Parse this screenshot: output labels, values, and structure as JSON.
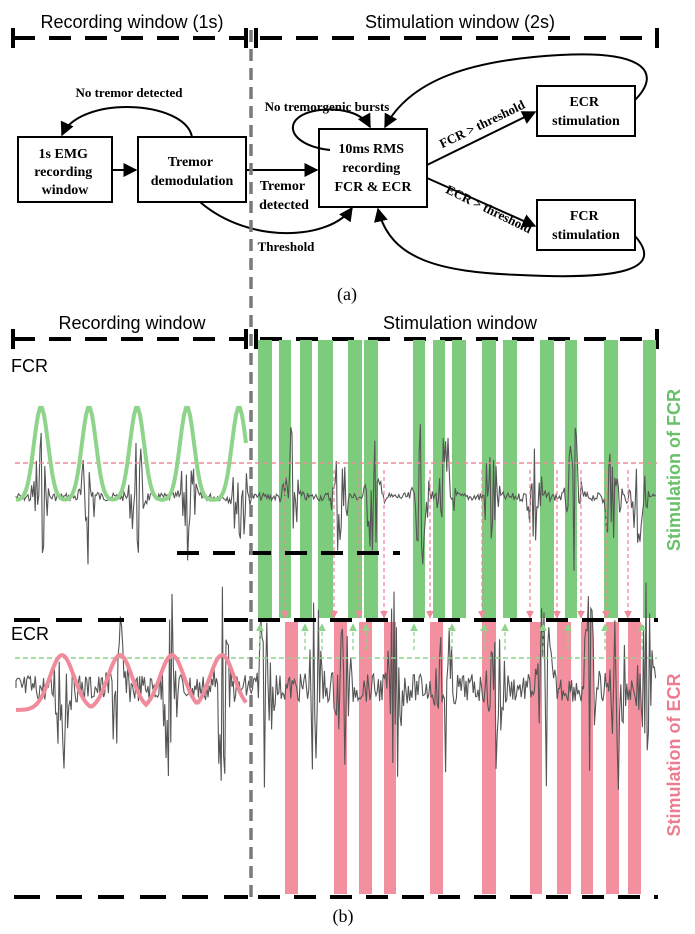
{
  "panel_a": {
    "header_left": "Recording window (1s)",
    "header_right": "Stimulation window (2s)",
    "boxes": {
      "emg": [
        "1s EMG",
        "recording",
        "window"
      ],
      "demod": [
        "Tremor",
        "demodulation"
      ],
      "rms": [
        "10ms RMS",
        "recording",
        "FCR & ECR"
      ],
      "ecr_stim": [
        "ECR",
        "stimulation"
      ],
      "fcr_stim": [
        "FCR",
        "stimulation"
      ]
    },
    "edge_labels": {
      "no_tremor": "No tremor detected",
      "no_bursts": "No tremorgenic bursts",
      "tremor_detected": [
        "Tremor",
        "detected"
      ],
      "threshold": "Threshold",
      "fcr_gt": "FCR > threshold",
      "ecr_gt": "ECR > threshold"
    },
    "caption": "(a)"
  },
  "panel_b": {
    "header_left": "Recording window",
    "header_right": "Stimulation window",
    "fcr_label": "FCR",
    "ecr_label": "ECR",
    "fcr_side_label": "Stimulation of FCR",
    "ecr_side_label": "Stimulation of ECR",
    "caption": "(b)"
  },
  "colors": {
    "green": "#7dcb7d",
    "green_line": "#8ed48a",
    "pink": "#f2909f",
    "pink_line": "#ef8b9b",
    "signal": "#555555",
    "divider": "#7a7a7a",
    "green_text": "#6ac06a",
    "pink_text": "#ec7d90"
  }
}
